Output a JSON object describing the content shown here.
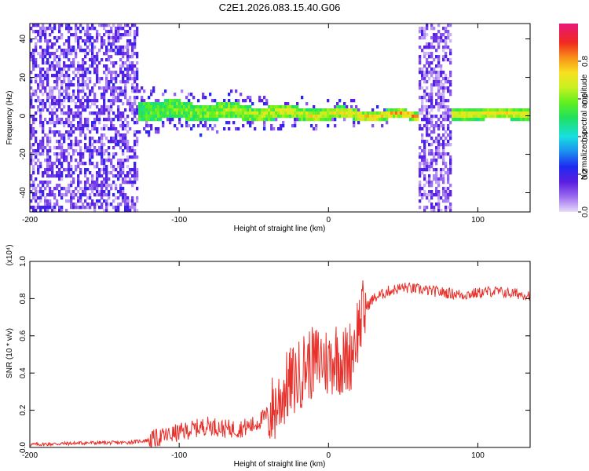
{
  "title": "C2E1.2026.083.15.40.G06",
  "chart_data": [
    {
      "type": "heatmap",
      "name": "spectrogram",
      "xlabel": "Height of straight line (km)",
      "ylabel": "Frequency (Hz)",
      "xlim": [
        -200,
        135
      ],
      "ylim": [
        -50,
        48
      ],
      "xticks": [
        -200,
        -100,
        0,
        100
      ],
      "yticks": [
        -40,
        -20,
        0,
        20,
        40
      ],
      "colorbar": {
        "label": "Normalized spectral amplitude",
        "range": [
          0,
          1
        ],
        "ticks": [
          0.0,
          0.2,
          0.4,
          0.6,
          0.8
        ],
        "tick_labels": [
          "0.0",
          "0.2",
          "0.4",
          "0.6",
          "0.8"
        ]
      },
      "regions": [
        {
          "desc": "broadband noise",
          "x": [
            -200,
            -128
          ],
          "freq": [
            -50,
            48
          ],
          "amplitude": 0.15
        },
        {
          "desc": "signal line",
          "x": [
            -128,
            58
          ],
          "freq_center": [
            3,
            0
          ],
          "amplitude": [
            0.45,
            0.75
          ]
        },
        {
          "desc": "broadband gap",
          "x": [
            60,
            83
          ],
          "freq": [
            -50,
            48
          ],
          "amplitude": 0.1
        },
        {
          "desc": "signal line",
          "x": [
            84,
            135
          ],
          "freq_center": [
            1,
            2
          ],
          "amplitude": 0.6
        }
      ]
    },
    {
      "type": "line",
      "name": "snr",
      "xlabel": "Height of straight line (km)",
      "ylabel": "SNR (10 * v/v)",
      "multiplier": "(x10⁴)",
      "xlim": [
        -200,
        135
      ],
      "ylim": [
        0,
        1.0
      ],
      "xticks": [
        -200,
        -100,
        0,
        100
      ],
      "yticks": [
        0.0,
        0.2,
        0.4,
        0.6,
        0.8,
        1.0
      ],
      "color": "#e8302a",
      "series": [
        {
          "name": "SNR",
          "x": [
            -200,
            -180,
            -160,
            -140,
            -130,
            -120,
            -110,
            -100,
            -90,
            -80,
            -70,
            -60,
            -50,
            -40,
            -35,
            -30,
            -25,
            -20,
            -15,
            -10,
            -5,
            0,
            5,
            10,
            15,
            20,
            25,
            30,
            40,
            50,
            60,
            70,
            80,
            90,
            100,
            110,
            120,
            135
          ],
          "values": [
            0.015,
            0.02,
            0.025,
            0.025,
            0.03,
            0.04,
            0.06,
            0.08,
            0.1,
            0.12,
            0.1,
            0.1,
            0.12,
            0.18,
            0.22,
            0.3,
            0.35,
            0.38,
            0.45,
            0.45,
            0.48,
            0.45,
            0.5,
            0.45,
            0.5,
            0.65,
            0.75,
            0.8,
            0.84,
            0.86,
            0.85,
            0.84,
            0.83,
            0.82,
            0.83,
            0.84,
            0.83,
            0.82
          ]
        }
      ]
    }
  ]
}
